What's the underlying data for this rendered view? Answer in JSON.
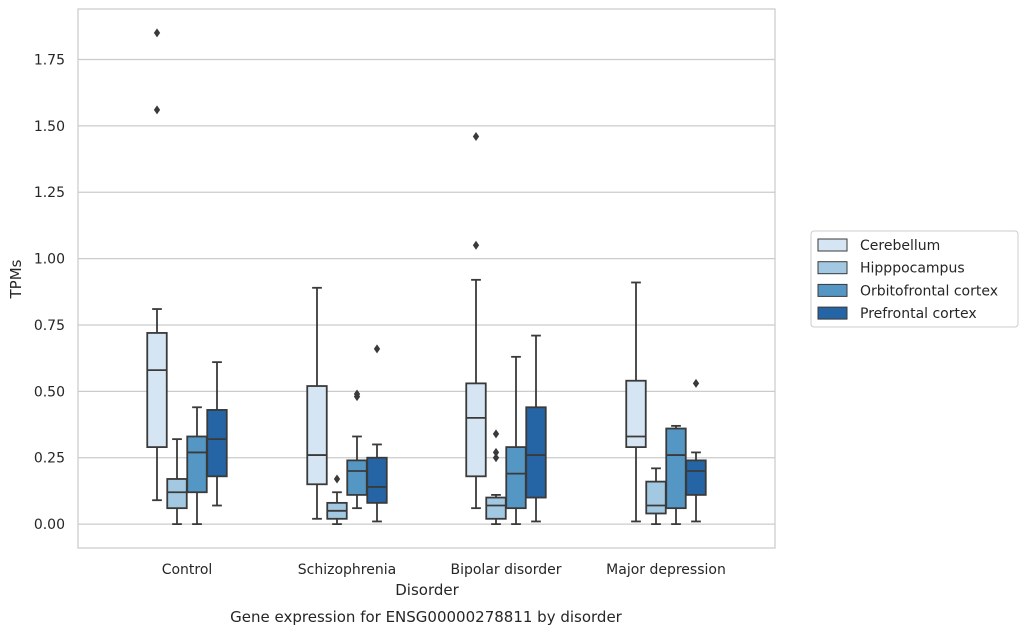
{
  "chart_data": {
    "type": "box",
    "caption": "Gene expression for ENSG00000278811 by disorder",
    "xlabel": "Disorder",
    "ylabel": "TPMs",
    "ylim": [
      -0.09,
      1.94
    ],
    "yticks": [
      0.0,
      0.25,
      0.5,
      0.75,
      1.0,
      1.25,
      1.5,
      1.75
    ],
    "ytick_labels": [
      "0.00",
      "0.25",
      "0.50",
      "0.75",
      "1.00",
      "1.25",
      "1.50",
      "1.75"
    ],
    "grid": true,
    "legend_position": "right",
    "categories": [
      "Control",
      "Schizophrenia",
      "Bipolar disorder",
      "Major depression"
    ],
    "series": [
      {
        "name": "Cerebellum",
        "color": "#d6e5f3",
        "boxes": [
          {
            "whislo": 0.09,
            "q1": 0.29,
            "med": 0.58,
            "q3": 0.72,
            "whishi": 0.81,
            "fliers": [
              1.56,
              1.85
            ]
          },
          {
            "whislo": 0.02,
            "q1": 0.15,
            "med": 0.26,
            "q3": 0.52,
            "whishi": 0.89,
            "fliers": []
          },
          {
            "whislo": 0.06,
            "q1": 0.18,
            "med": 0.4,
            "q3": 0.53,
            "whishi": 0.92,
            "fliers": [
              1.05,
              1.46
            ]
          },
          {
            "whislo": 0.01,
            "q1": 0.29,
            "med": 0.33,
            "q3": 0.54,
            "whishi": 0.91,
            "fliers": []
          }
        ]
      },
      {
        "name": "Hipppocampus",
        "color": "#a3c9e2",
        "boxes": [
          {
            "whislo": 0.0,
            "q1": 0.06,
            "med": 0.12,
            "q3": 0.17,
            "whishi": 0.32,
            "fliers": []
          },
          {
            "whislo": 0.0,
            "q1": 0.02,
            "med": 0.05,
            "q3": 0.08,
            "whishi": 0.12,
            "fliers": [
              0.17
            ]
          },
          {
            "whislo": 0.0,
            "q1": 0.02,
            "med": 0.07,
            "q3": 0.1,
            "whishi": 0.11,
            "fliers": [
              0.25,
              0.27,
              0.34
            ]
          },
          {
            "whislo": 0.0,
            "q1": 0.04,
            "med": 0.07,
            "q3": 0.16,
            "whishi": 0.21,
            "fliers": []
          }
        ]
      },
      {
        "name": "Orbitofrontal cortex",
        "color": "#5497c5",
        "boxes": [
          {
            "whislo": 0.0,
            "q1": 0.12,
            "med": 0.27,
            "q3": 0.33,
            "whishi": 0.44,
            "fliers": []
          },
          {
            "whislo": 0.06,
            "q1": 0.11,
            "med": 0.2,
            "q3": 0.24,
            "whishi": 0.33,
            "fliers": [
              0.48,
              0.49
            ]
          },
          {
            "whislo": 0.0,
            "q1": 0.06,
            "med": 0.19,
            "q3": 0.29,
            "whishi": 0.63,
            "fliers": []
          },
          {
            "whislo": 0.0,
            "q1": 0.06,
            "med": 0.26,
            "q3": 0.36,
            "whishi": 0.37,
            "fliers": []
          }
        ]
      },
      {
        "name": "Prefrontal cortex",
        "color": "#2564a5",
        "boxes": [
          {
            "whislo": 0.07,
            "q1": 0.18,
            "med": 0.32,
            "q3": 0.43,
            "whishi": 0.61,
            "fliers": []
          },
          {
            "whislo": 0.01,
            "q1": 0.08,
            "med": 0.14,
            "q3": 0.25,
            "whishi": 0.3,
            "fliers": [
              0.66
            ]
          },
          {
            "whislo": 0.01,
            "q1": 0.1,
            "med": 0.26,
            "q3": 0.44,
            "whishi": 0.71,
            "fliers": []
          },
          {
            "whislo": 0.01,
            "q1": 0.11,
            "med": 0.2,
            "q3": 0.24,
            "whishi": 0.27,
            "fliers": [
              0.53
            ]
          }
        ]
      }
    ]
  }
}
